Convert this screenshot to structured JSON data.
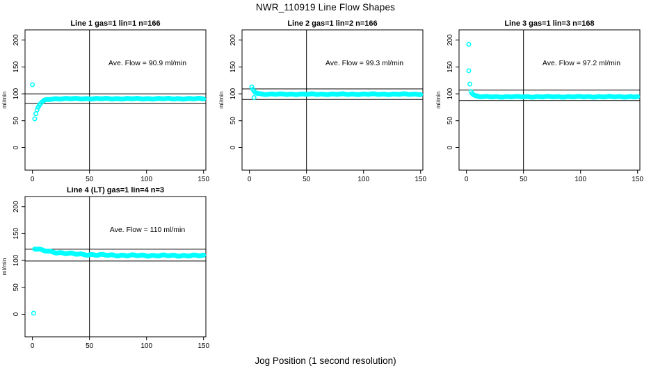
{
  "title": "NWR_110919  Line Flow Shapes",
  "xlabel": "Jog Position (1 second resolution)",
  "colors": {
    "points": "#00ffff",
    "axis": "#000000",
    "background": "#ffffff"
  },
  "chart_data": {
    "type": "scatter",
    "title": "NWR_110919  Line Flow Shapes",
    "xlabel": "Jog Position (1 second resolution)",
    "grid": false,
    "legend": "none",
    "point_style": "open-circle",
    "point_color": "#00ffff",
    "x_ticks": [
      0,
      50,
      100,
      150
    ],
    "y_ticks": [
      0,
      50,
      100,
      150,
      200
    ],
    "xlim": [
      -6.5,
      152
    ],
    "ylim": [
      -42,
      219
    ],
    "panels": [
      {
        "title": "Line 1 gas=1 lin=1 n=166",
        "ylabel": "ml/min",
        "annotation": "Ave. Flow =  90.9  ml/min",
        "ave_flow": 90.9,
        "ref_lines": [
          100.0,
          81.8
        ],
        "vline": 50,
        "outliers": [
          [
            0,
            117
          ]
        ],
        "trend": {
          "x_from": 2,
          "x_to": 150,
          "step": 1,
          "settle": 90.9,
          "amp": -38,
          "tau": 3.5,
          "wiggle": 0.5
        }
      },
      {
        "title": "Line 2 gas=1 lin=2 n=166",
        "ylabel": "ml/min",
        "annotation": "Ave. Flow =  99.3  ml/min",
        "ave_flow": 99.3,
        "ref_lines": [
          109.2,
          89.4
        ],
        "vline": 50,
        "outliers": [
          [
            4,
            93
          ]
        ],
        "trend": {
          "x_from": 2,
          "x_to": 150,
          "step": 1,
          "settle": 99.3,
          "amp": 13,
          "tau": 2.5,
          "wiggle": 0.5
        }
      },
      {
        "title": "Line 3 gas=1 lin=3 n=168",
        "ylabel": "ml/min",
        "annotation": "Ave. Flow =  97.2  ml/min",
        "ave_flow": 97.2,
        "ref_lines": [
          106.9,
          87.5
        ],
        "vline": 50,
        "outliers": [
          [
            2,
            192
          ],
          [
            2,
            143
          ],
          [
            3,
            118
          ]
        ],
        "trend": {
          "x_from": 4,
          "x_to": 150,
          "step": 1,
          "settle": 94.5,
          "amp": 10.5,
          "tau": 2.2,
          "wiggle": 0.5
        }
      },
      {
        "title": "Line 4 (LT) gas=1 lin=4 n=3",
        "ylabel": "ml/min",
        "annotation": "Ave. Flow =  110  ml/min",
        "ave_flow": 110,
        "ref_lines": [
          121.0,
          99.0
        ],
        "vline": 50,
        "outliers": [
          [
            1,
            2
          ]
        ],
        "trend": {
          "x_from": 2,
          "x_to": 150,
          "step": 1,
          "settle": 109,
          "amp": 13,
          "tau": 25,
          "wiggle": 0.8
        }
      }
    ]
  }
}
